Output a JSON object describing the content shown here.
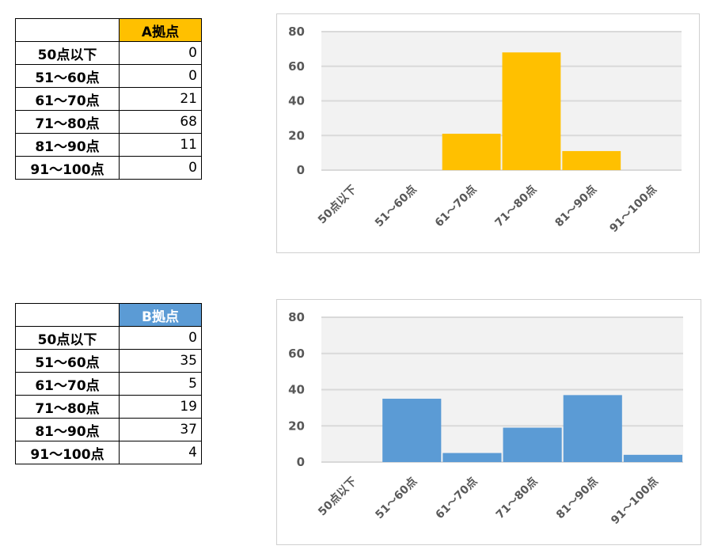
{
  "tables": [
    {
      "header": "A拠点",
      "header_color": "#FFC000",
      "header_text_color": "#000000",
      "rows": [
        {
          "label": "50点以下",
          "value": "0"
        },
        {
          "label": "51〜60点",
          "value": "0"
        },
        {
          "label": "61〜70点",
          "value": "21"
        },
        {
          "label": "71〜80点",
          "value": "68"
        },
        {
          "label": "81〜90点",
          "value": "11"
        },
        {
          "label": "91〜100点",
          "value": "0"
        }
      ]
    },
    {
      "header": "B拠点",
      "header_color": "#5B9BD5",
      "header_text_color": "#FFFFFF",
      "rows": [
        {
          "label": "50点以下",
          "value": "0"
        },
        {
          "label": "51〜60点",
          "value": "35"
        },
        {
          "label": "61〜70点",
          "value": "5"
        },
        {
          "label": "71〜80点",
          "value": "19"
        },
        {
          "label": "81〜90点",
          "value": "37"
        },
        {
          "label": "91〜100点",
          "value": "4"
        }
      ]
    }
  ],
  "chart_data": [
    {
      "type": "bar",
      "categories": [
        "50点以下",
        "51〜60点",
        "61〜70点",
        "71〜80点",
        "81〜90点",
        "91〜100点"
      ],
      "values": [
        0,
        0,
        21,
        68,
        11,
        0
      ],
      "color": "#FFC000",
      "ylim": [
        0,
        80
      ],
      "yticks": [
        0,
        20,
        40,
        60,
        80
      ],
      "grid": true,
      "title": "",
      "xlabel": "",
      "ylabel": ""
    },
    {
      "type": "bar",
      "categories": [
        "50点以下",
        "51〜60点",
        "61〜70点",
        "71〜80点",
        "81〜90点",
        "91〜100点"
      ],
      "values": [
        0,
        35,
        5,
        19,
        37,
        4
      ],
      "color": "#5B9BD5",
      "ylim": [
        0,
        80
      ],
      "yticks": [
        0,
        20,
        40,
        60,
        80
      ],
      "grid": true,
      "title": "",
      "xlabel": "",
      "ylabel": ""
    }
  ]
}
